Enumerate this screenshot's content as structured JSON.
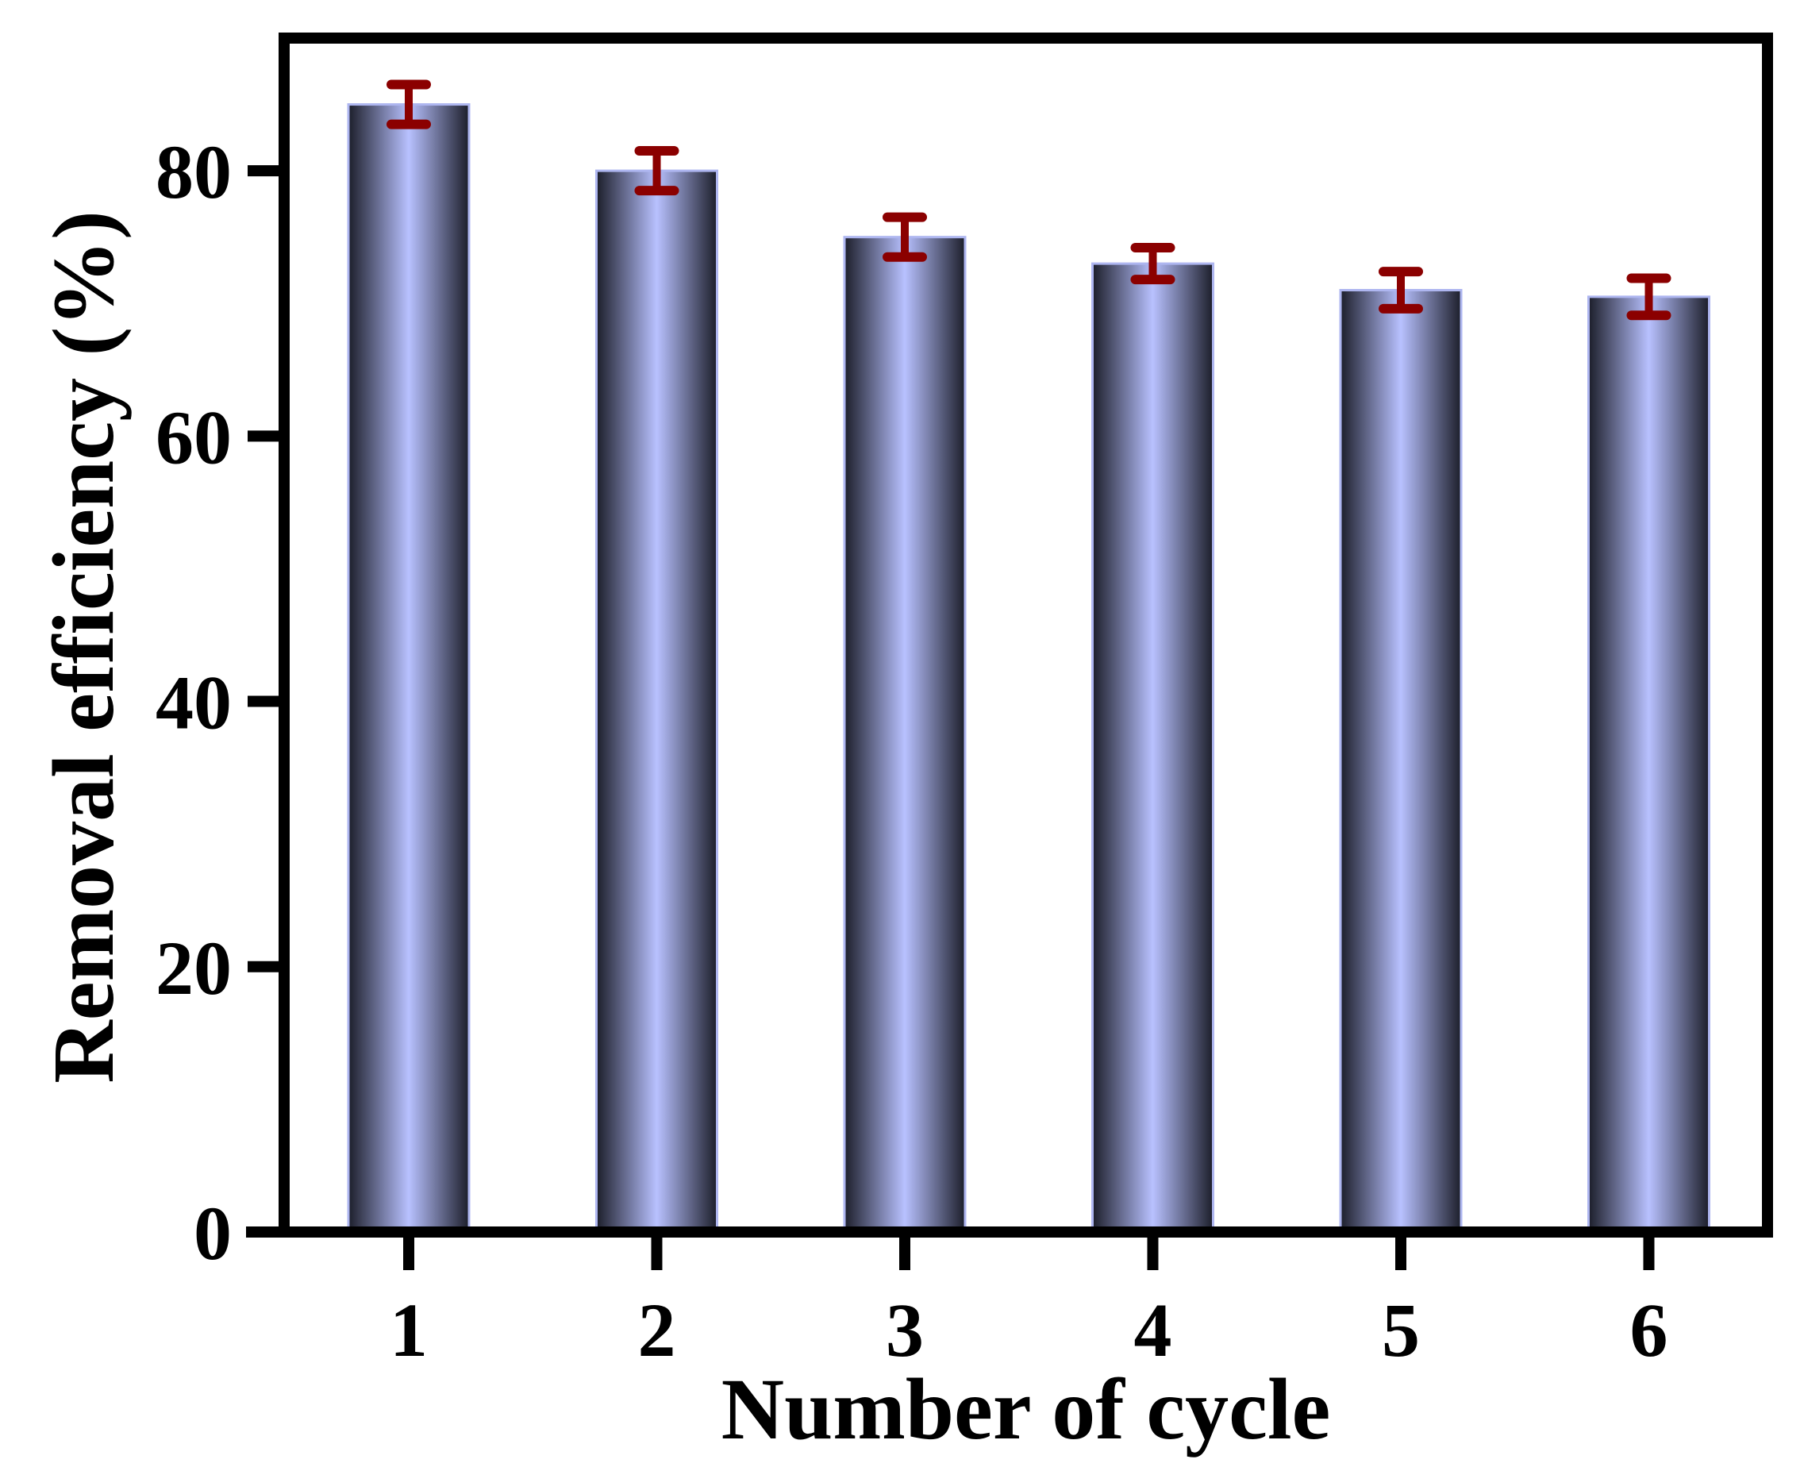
{
  "chart_data": {
    "type": "bar",
    "title": "",
    "xlabel": "Number of cycle",
    "ylabel": "Removal efficiency (%)",
    "categories": [
      "1",
      "2",
      "3",
      "4",
      "5",
      "6"
    ],
    "values": [
      85,
      80,
      75,
      73,
      71,
      70.5
    ],
    "errors": [
      1.5,
      1.5,
      1.5,
      1.2,
      1.4,
      1.4
    ],
    "ylim": [
      0,
      90
    ],
    "yticks": [
      "0",
      "20",
      "40",
      "60",
      "80"
    ],
    "grid": false,
    "legend": "none"
  },
  "colors": {
    "bar_center": "#b8c1ff",
    "bar_edge": "#1c1e2a",
    "bar_outline": "#aeb6f0",
    "error_bar": "#8b0000",
    "axis": "#000000"
  }
}
